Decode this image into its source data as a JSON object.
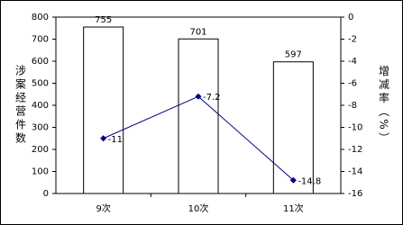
{
  "chart_data": {
    "type": "bar",
    "categories": [
      "9次",
      "10次",
      "11次"
    ],
    "y_label": "涉案经营件数",
    "y2_label": "增减率（%）",
    "series": [
      {
        "name": "件数",
        "type": "bar",
        "color": "#ffffff",
        "values": [
          755,
          701,
          597
        ]
      },
      {
        "name": "增减率",
        "type": "line",
        "axis": "y2",
        "color": "#000080",
        "values": [
          -11,
          -7.2,
          -14.8
        ]
      }
    ],
    "ylim": [
      0,
      800
    ],
    "yticks": [
      0,
      100,
      200,
      300,
      400,
      500,
      600,
      700,
      800
    ],
    "y2lim": [
      -16,
      0
    ],
    "y2ticks": [
      0,
      -2,
      -4,
      -6,
      -8,
      -10,
      -12,
      -14,
      -16
    ],
    "grid": false
  }
}
